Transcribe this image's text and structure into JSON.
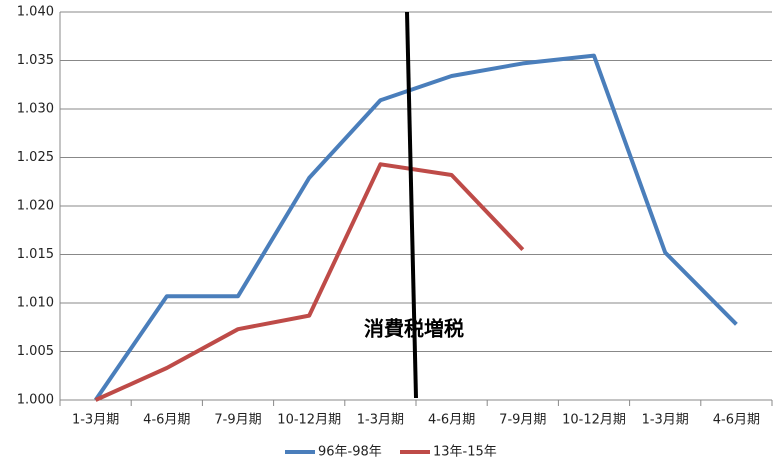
{
  "chart_data": {
    "type": "line",
    "annotation": "消費税増税",
    "categories": [
      "1-3月期",
      "4-6月期",
      "7-9月期",
      "10-12月期",
      "1-3月期",
      "4-6月期",
      "7-9月期",
      "10-12月期",
      "1-3月期",
      "4-6月期"
    ],
    "series": [
      {
        "name": "96年-98年",
        "color": "#4a7ebb",
        "values": [
          1.0,
          1.0107,
          1.0107,
          1.0229,
          1.0309,
          1.0334,
          1.0347,
          1.0355,
          1.0152,
          1.0078
        ]
      },
      {
        "name": "13年-15年",
        "color": "#be4b48",
        "values": [
          1.0,
          1.0033,
          1.0073,
          1.0087,
          1.0243,
          1.0232,
          1.0155,
          null,
          null,
          null
        ]
      }
    ],
    "ylim": [
      1.0,
      1.04
    ],
    "yticks": [
      {
        "value": 1.0,
        "label": "1.000"
      },
      {
        "value": 1.005,
        "label": "1.005"
      },
      {
        "value": 1.01,
        "label": "1.010"
      },
      {
        "value": 1.015,
        "label": "1.015"
      },
      {
        "value": 1.02,
        "label": "1.020"
      },
      {
        "value": 1.025,
        "label": "1.025"
      },
      {
        "value": 1.03,
        "label": "1.030"
      },
      {
        "value": 1.035,
        "label": "1.035"
      },
      {
        "value": 1.04,
        "label": "1.040"
      }
    ],
    "grid": true,
    "legend": "bottom"
  }
}
